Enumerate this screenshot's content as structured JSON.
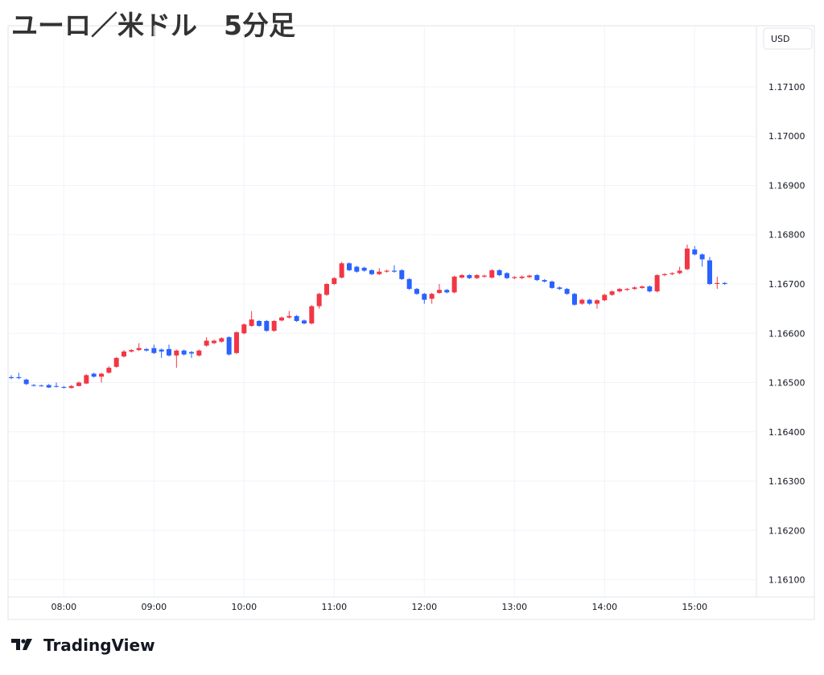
{
  "chart_data": {
    "type": "candlestick",
    "title": "ユーロ／米ドル　5分足",
    "y_unit": "USD",
    "categories": [
      null,
      null,
      null,
      null,
      null,
      null,
      null,
      "08:00",
      null,
      null,
      null,
      null,
      null,
      null,
      null,
      null,
      null,
      null,
      null,
      "09:00",
      null,
      null,
      null,
      null,
      null,
      null,
      null,
      null,
      null,
      null,
      null,
      "10:00",
      null,
      null,
      null,
      null,
      null,
      null,
      null,
      null,
      null,
      null,
      null,
      "11:00",
      null,
      null,
      null,
      null,
      null,
      null,
      null,
      null,
      null,
      null,
      null,
      "12:00",
      null,
      null,
      null,
      null,
      null,
      null,
      null,
      null,
      null,
      null,
      null,
      "13:00",
      null,
      null,
      null,
      null,
      null,
      null,
      null,
      null,
      null,
      null,
      null,
      "14:00",
      null,
      null,
      null,
      null,
      null,
      null,
      null,
      null,
      null,
      null,
      null,
      "15:00",
      null,
      null,
      null,
      null
    ],
    "open": [
      1.16511,
      1.16511,
      1.16506,
      1.16495,
      1.16494,
      1.16495,
      1.16493,
      1.16491,
      1.16489,
      1.16493,
      1.16498,
      1.16518,
      1.16512,
      1.1652,
      1.16532,
      1.16553,
      1.16563,
      1.16566,
      1.16568,
      1.1657,
      1.16567,
      1.16568,
      1.16555,
      1.16565,
      1.16562,
      1.16555,
      1.16575,
      1.1658,
      1.16583,
      1.16592,
      1.1656,
      1.166,
      1.16615,
      1.16625,
      1.16625,
      1.16605,
      1.16626,
      1.16632,
      1.16635,
      1.16626,
      1.1662,
      1.16655,
      1.16678,
      1.167,
      1.16713,
      1.16742,
      1.16735,
      1.16733,
      1.16728,
      1.1672,
      1.16725,
      1.16727,
      1.16728,
      1.1671,
      1.1669,
      1.1668,
      1.1667,
      1.16682,
      1.16688,
      1.16683,
      1.16713,
      1.16718,
      1.16712,
      1.16715,
      1.16713,
      1.16728,
      1.16722,
      1.16712,
      1.16712,
      1.16714,
      1.16718,
      1.16708,
      1.16705,
      1.16693,
      1.1669,
      1.1668,
      1.1666,
      1.16668,
      1.1666,
      1.16667,
      1.16678,
      1.16685,
      1.16688,
      1.1669,
      1.16692,
      1.16695,
      1.16685,
      1.16718,
      1.1672,
      1.16722,
      1.1673,
      1.1677,
      1.1676,
      1.16748,
      1.167,
      1.16702
    ],
    "high": [
      1.16515,
      1.1652,
      1.16508,
      1.16497,
      1.16496,
      1.16497,
      1.165,
      1.16493,
      1.16495,
      1.16502,
      1.16517,
      1.1652,
      1.1652,
      1.16533,
      1.16552,
      1.16566,
      1.16568,
      1.1658,
      1.1657,
      1.16577,
      1.16569,
      1.16577,
      1.16567,
      1.16567,
      1.16564,
      1.16567,
      1.16592,
      1.16587,
      1.16592,
      1.16594,
      1.16604,
      1.1662,
      1.16645,
      1.16627,
      1.16627,
      1.16627,
      1.16634,
      1.16645,
      1.16637,
      1.16628,
      1.16657,
      1.16682,
      1.16702,
      1.16714,
      1.16745,
      1.16744,
      1.16737,
      1.16735,
      1.1673,
      1.16732,
      1.16729,
      1.16738,
      1.1673,
      1.16712,
      1.16692,
      1.16682,
      1.16682,
      1.167,
      1.1669,
      1.16717,
      1.1672,
      1.1672,
      1.1672,
      1.16719,
      1.1673,
      1.1673,
      1.16724,
      1.16716,
      1.16717,
      1.16719,
      1.1672,
      1.1671,
      1.16707,
      1.16695,
      1.16692,
      1.16682,
      1.1667,
      1.1667,
      1.16669,
      1.1668,
      1.16687,
      1.16692,
      1.16692,
      1.16695,
      1.16697,
      1.16697,
      1.1672,
      1.16722,
      1.16724,
      1.16735,
      1.1678,
      1.16777,
      1.16762,
      1.16755,
      1.16715,
      1.16704
    ],
    "low": [
      1.16507,
      1.16507,
      1.16495,
      1.16492,
      1.16492,
      1.16489,
      1.1649,
      1.16488,
      1.16488,
      1.16492,
      1.16497,
      1.1651,
      1.165,
      1.16518,
      1.1653,
      1.16551,
      1.16561,
      1.16564,
      1.16563,
      1.16558,
      1.1655,
      1.16553,
      1.1653,
      1.16555,
      1.1655,
      1.16553,
      1.16573,
      1.16578,
      1.16581,
      1.16555,
      1.16558,
      1.16598,
      1.16613,
      1.16613,
      1.16603,
      1.16603,
      1.16624,
      1.1663,
      1.16623,
      1.16618,
      1.16618,
      1.1665,
      1.16676,
      1.16698,
      1.16711,
      1.16726,
      1.16723,
      1.16725,
      1.16718,
      1.16718,
      1.16723,
      1.16723,
      1.16708,
      1.16688,
      1.16678,
      1.1666,
      1.1666,
      1.1668,
      1.16681,
      1.16681,
      1.16711,
      1.1671,
      1.1671,
      1.16713,
      1.16711,
      1.16716,
      1.1671,
      1.1671,
      1.1671,
      1.16712,
      1.16706,
      1.16703,
      1.1669,
      1.16688,
      1.16678,
      1.16656,
      1.16658,
      1.16658,
      1.1665,
      1.16665,
      1.16676,
      1.16683,
      1.16686,
      1.16688,
      1.1669,
      1.16683,
      1.16683,
      1.16716,
      1.16718,
      1.1672,
      1.16728,
      1.16758,
      1.16735,
      1.16698,
      1.1669,
      1.16698
    ],
    "close": [
      1.16509,
      1.16509,
      1.16497,
      1.16494,
      1.16493,
      1.1649,
      1.16492,
      1.1649,
      1.16493,
      1.165,
      1.16515,
      1.16512,
      1.16518,
      1.1653,
      1.1655,
      1.16563,
      1.16566,
      1.1657,
      1.16565,
      1.1656,
      1.16563,
      1.16555,
      1.16565,
      1.16557,
      1.16559,
      1.16565,
      1.16585,
      1.16585,
      1.1659,
      1.16557,
      1.16602,
      1.16618,
      1.16628,
      1.16615,
      1.16605,
      1.16625,
      1.16632,
      1.16635,
      1.16625,
      1.1662,
      1.16655,
      1.1668,
      1.167,
      1.16712,
      1.16742,
      1.16728,
      1.16725,
      1.16727,
      1.1672,
      1.16725,
      1.16727,
      1.16725,
      1.1671,
      1.1669,
      1.1668,
      1.16668,
      1.1668,
      1.16688,
      1.16683,
      1.16715,
      1.16718,
      1.16712,
      1.16718,
      1.16717,
      1.16728,
      1.16718,
      1.16712,
      1.16714,
      1.16715,
      1.16717,
      1.16708,
      1.16705,
      1.16692,
      1.1669,
      1.1668,
      1.16658,
      1.16668,
      1.1666,
      1.16667,
      1.16678,
      1.16685,
      1.1669,
      1.1669,
      1.16693,
      1.16695,
      1.16685,
      1.16718,
      1.1672,
      1.16722,
      1.16727,
      1.16772,
      1.1676,
      1.1675,
      1.167,
      1.16702,
      1.167
    ],
    "up_color": "#f23645",
    "down_color": "#2962ff",
    "ylim": [
      1.16065,
      1.17224
    ],
    "yticks": [
      {
        "value": 1.171,
        "label": "1.17100"
      },
      {
        "value": 1.17,
        "label": "1.17000"
      },
      {
        "value": 1.169,
        "label": "1.16900"
      },
      {
        "value": 1.168,
        "label": "1.16800"
      },
      {
        "value": 1.167,
        "label": "1.16700"
      },
      {
        "value": 1.166,
        "label": "1.16600"
      },
      {
        "value": 1.165,
        "label": "1.16500"
      },
      {
        "value": 1.164,
        "label": "1.16400"
      },
      {
        "value": 1.163,
        "label": "1.16300"
      },
      {
        "value": 1.162,
        "label": "1.16200"
      },
      {
        "value": 1.161,
        "label": "1.16100"
      }
    ],
    "grid": true
  },
  "footer": {
    "brand": "TradingView"
  }
}
